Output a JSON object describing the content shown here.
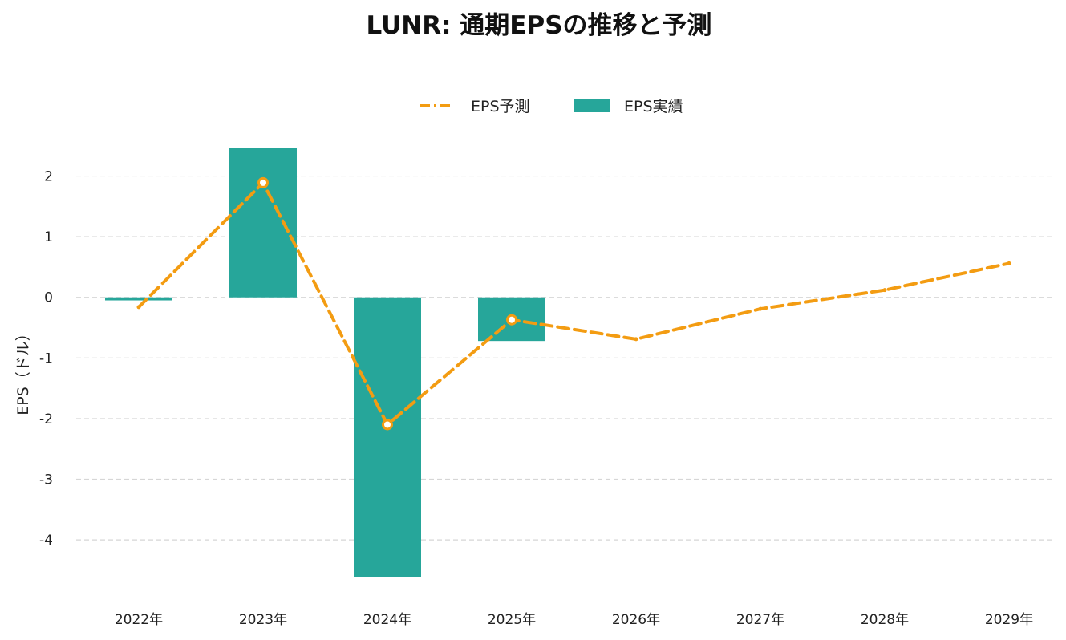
{
  "chart_data": {
    "type": "bar",
    "title": "LUNR: 通期EPSの推移と予測",
    "xlabel": "",
    "ylabel": "EPS（ドル）",
    "categories": [
      "2022年",
      "2023年",
      "2024年",
      "2025年",
      "2026年",
      "2027年",
      "2028年",
      "2029年"
    ],
    "ylim": [
      -4.7,
      2.55
    ],
    "yticks": [
      2,
      1,
      0,
      -1,
      -2,
      -3,
      -4
    ],
    "grid": true,
    "legend_position": "top-center",
    "series": [
      {
        "name": "EPS予測",
        "type": "line",
        "style": "dashed",
        "color": "#F39C12",
        "values": [
          -0.16,
          1.89,
          -2.1,
          -0.37,
          -0.69,
          -0.19,
          0.12,
          0.56
        ],
        "markers": [
          false,
          true,
          true,
          true,
          false,
          false,
          false,
          false
        ]
      },
      {
        "name": "EPS実績",
        "type": "bar",
        "color": "#26A69A",
        "values": [
          -0.05,
          2.46,
          -4.61,
          -0.72,
          null,
          null,
          null,
          null
        ]
      }
    ]
  }
}
